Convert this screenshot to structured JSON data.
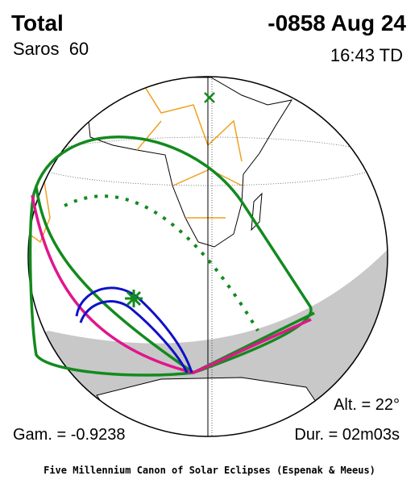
{
  "header": {
    "title": "Total",
    "date": "-0858 Aug 24",
    "saros": "Saros  60",
    "time": "16:43 TD"
  },
  "footer": {
    "altitude": "Alt. = 22°",
    "gamma": "Gam. = -0.9238",
    "duration": "Dur. = 02m03s",
    "credit": "Five Millennium Canon of Solar Eclipses (Espenak & Meeus)"
  }
}
